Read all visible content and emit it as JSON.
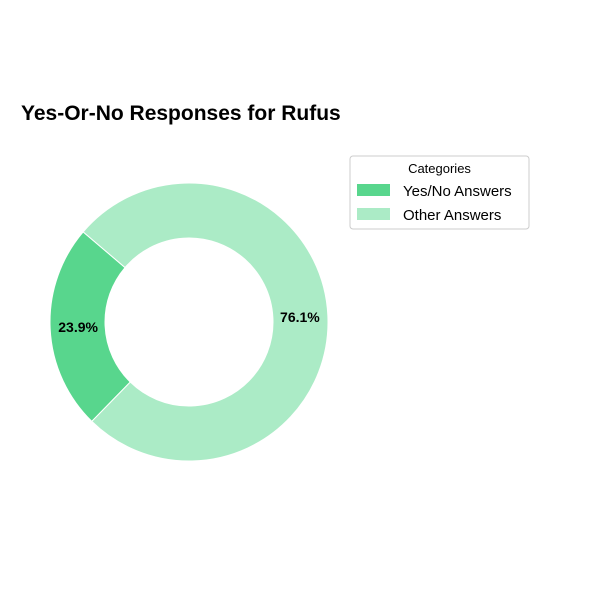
{
  "chart_data": {
    "type": "pie",
    "variant": "donut",
    "title": "Yes-Or-No Responses for Rufus",
    "categories": [
      "Yes/No Answers",
      "Other Answers"
    ],
    "values": [
      23.9,
      76.1
    ],
    "labels": [
      "23.9%",
      "76.1%"
    ],
    "colors": [
      "#58d68d",
      "#abebc6"
    ],
    "legend": {
      "title": "Categories",
      "placement": "right",
      "entries": [
        "Yes/No Answers",
        "Other Answers"
      ]
    }
  }
}
